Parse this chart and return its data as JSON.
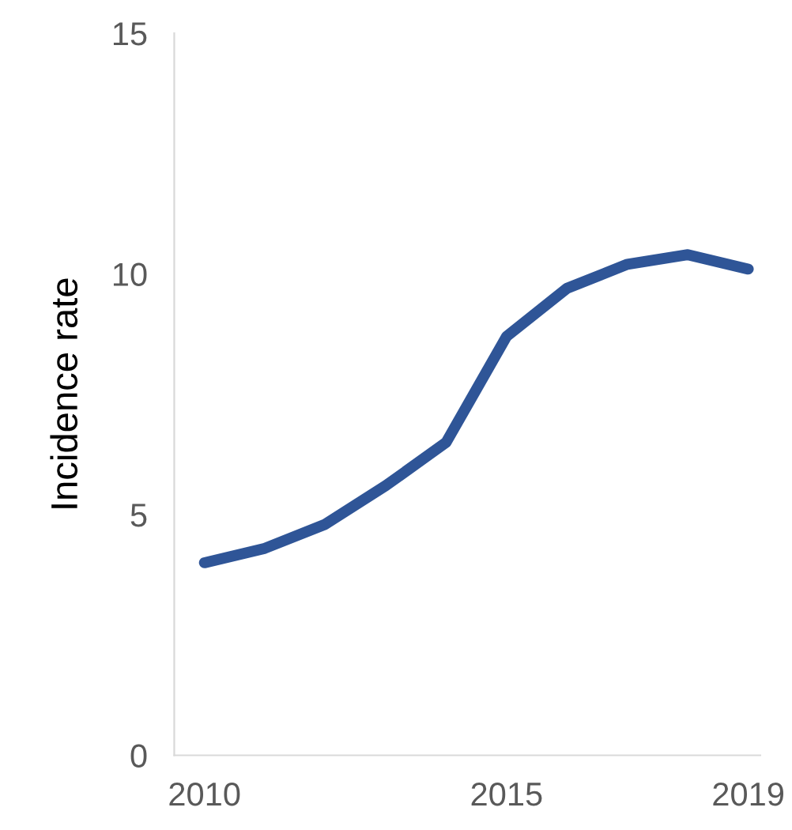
{
  "chart_data": {
    "type": "line",
    "ylabel": "Incidence rate",
    "x": [
      2010,
      2011,
      2012,
      2013,
      2014,
      2015,
      2016,
      2017,
      2018,
      2019
    ],
    "series": [
      {
        "color": "#2f5597",
        "values": [
          4.0,
          4.3,
          4.8,
          5.6,
          6.5,
          8.7,
          9.7,
          10.2,
          10.4,
          10.1
        ]
      }
    ],
    "xlim": [
      2009.5,
      2019.2
    ],
    "xticks": [
      2010,
      2015,
      2019
    ],
    "ylim": [
      0,
      15
    ],
    "yticks": [
      0,
      5,
      10,
      15
    ],
    "grid": false,
    "legend": false,
    "marker": "none",
    "line_style": "solid"
  }
}
